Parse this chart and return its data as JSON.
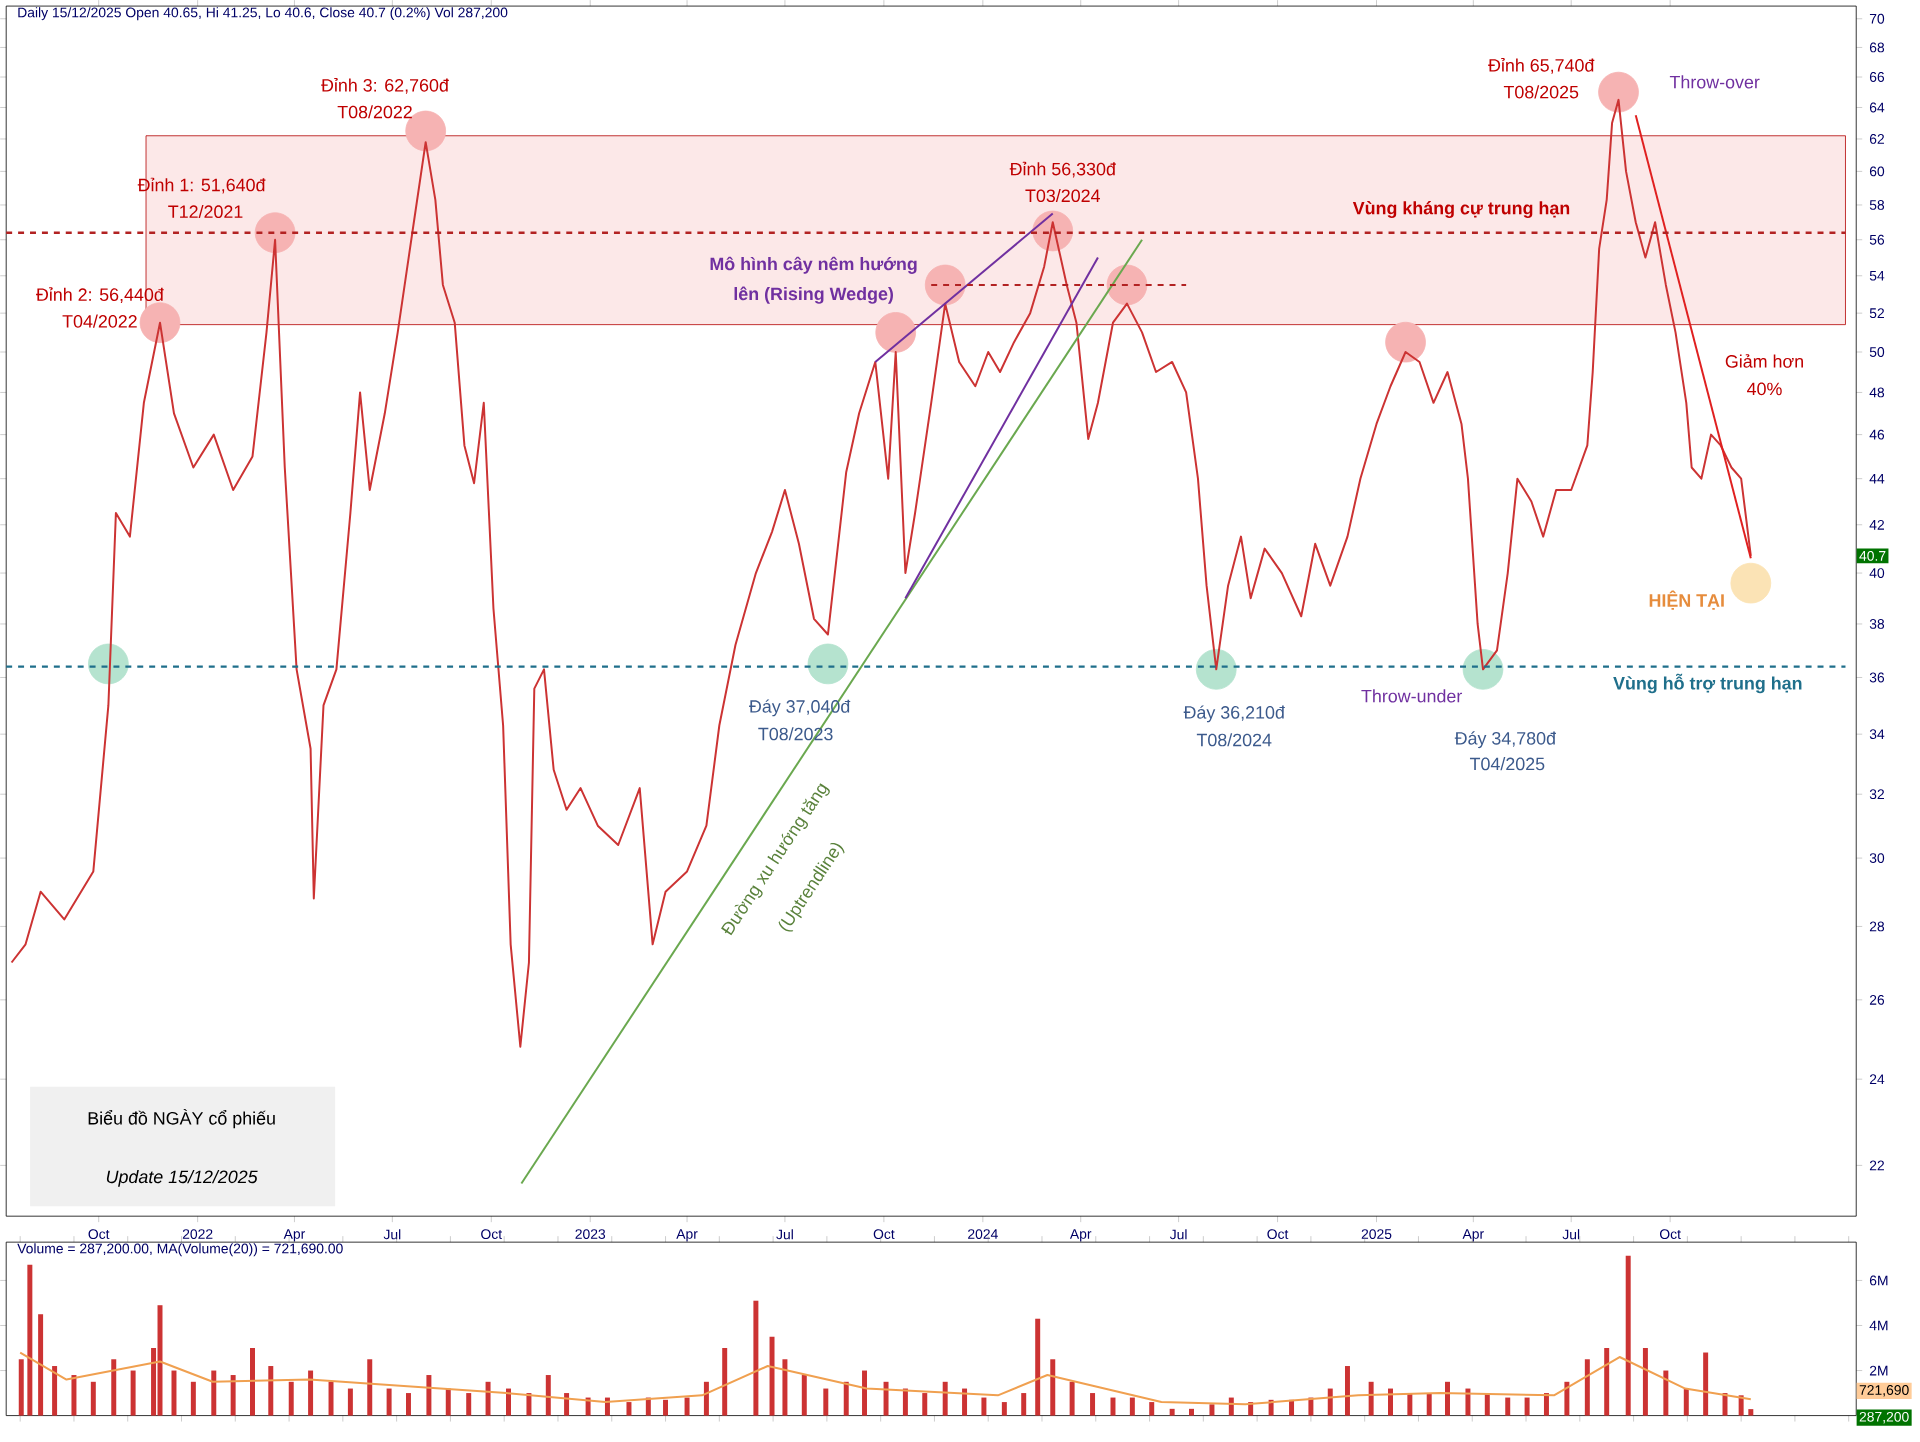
{
  "chart_data": [
    {
      "type": "line",
      "title": "Daily 15/12/2025 Open 40.65, Hi 41.25, Lo 40.6, Close 40.7 (0.2%) Vol 287,200",
      "log": "y",
      "xlim": [
        "2021-07-07",
        "2026-03-23"
      ],
      "ylim": [
        20.9,
        70.9
      ],
      "xticks": [
        {
          "value": "2021-10-01",
          "label": "Oct"
        },
        {
          "value": "2022-01-01",
          "label": "2022"
        },
        {
          "value": "2022-04-01",
          "label": "Apr"
        },
        {
          "value": "2022-07-01",
          "label": "Jul"
        },
        {
          "value": "2022-10-01",
          "label": "Oct"
        },
        {
          "value": "2023-01-01",
          "label": "2023"
        },
        {
          "value": "2023-04-01",
          "label": "Apr"
        },
        {
          "value": "2023-07-01",
          "label": "Jul"
        },
        {
          "value": "2023-10-01",
          "label": "Oct"
        },
        {
          "value": "2024-01-01",
          "label": "2024"
        },
        {
          "value": "2024-04-01",
          "label": "Apr"
        },
        {
          "value": "2024-07-01",
          "label": "Jul"
        },
        {
          "value": "2024-10-01",
          "label": "Oct"
        },
        {
          "value": "2025-01-01",
          "label": "2025"
        },
        {
          "value": "2025-04-01",
          "label": "Apr"
        },
        {
          "value": "2025-07-01",
          "label": "Jul"
        },
        {
          "value": "2025-10-01",
          "label": "Oct"
        }
      ],
      "yticks": [
        22,
        24,
        26,
        28,
        30,
        32,
        34,
        36,
        38,
        40,
        42,
        44,
        46,
        48,
        50,
        52,
        54,
        56,
        58,
        60,
        62,
        64,
        66,
        68,
        70
      ],
      "bands": [
        {
          "axis": "y",
          "from": 51.4,
          "to": 62.2,
          "label": "Vùng kháng cự trung hạn",
          "color": "#fce8e8"
        }
      ],
      "ref_lines": [
        {
          "axis": "y",
          "value": 56.4,
          "color": "#b22222",
          "line_style": "dashed"
        },
        {
          "axis": "y",
          "value": 36.4,
          "label": "Vùng hỗ trợ trung hạn",
          "color": "#1f6f8b",
          "line_style": "dashed"
        }
      ],
      "series": [
        {
          "type": "scatter",
          "marker": "circle",
          "color": "#f6b3b3",
          "x": [
            "2021-11-27",
            "2022-03-14",
            "2022-08-01",
            "2023-10-12",
            "2023-11-27",
            "2024-03-06",
            "2024-05-14",
            "2025-01-28",
            "2025-08-14"
          ],
          "values": [
            51.5,
            56.4,
            62.5,
            51,
            53.5,
            56.5,
            53.5,
            50.5,
            65
          ]
        },
        {
          "type": "scatter",
          "marker": "circle",
          "color": "#b5e3cf",
          "x": [
            "2021-10-10",
            "2023-08-10",
            "2024-08-05",
            "2025-04-10"
          ],
          "values": [
            36.5,
            36.5,
            36.3,
            36.3
          ]
        },
        {
          "type": "scatter",
          "marker": "circle",
          "color": "#fbe3b5",
          "x": [
            "2025-12-15"
          ],
          "values": [
            39.6
          ]
        },
        {
          "color": "#cc3333",
          "x": [
            "2021-07-12",
            "2021-07-25",
            "2021-08-08",
            "2021-08-30",
            "2021-09-26",
            "2021-10-10",
            "2021-10-17",
            "2021-10-30",
            "2021-11-12",
            "2021-11-27",
            "2021-12-10",
            "2021-12-28",
            "2022-01-16",
            "2022-02-03",
            "2022-02-21",
            "2022-03-06",
            "2022-03-14",
            "2022-03-23",
            "2022-04-03",
            "2022-04-16",
            "2022-04-19",
            "2022-04-28",
            "2022-05-10",
            "2022-05-23",
            "2022-06-01",
            "2022-06-10",
            "2022-06-24",
            "2022-07-06",
            "2022-07-21",
            "2022-08-01",
            "2022-08-10",
            "2022-08-17",
            "2022-08-28",
            "2022-09-06",
            "2022-09-15",
            "2022-09-24",
            "2022-10-03",
            "2022-10-12",
            "2022-10-19",
            "2022-10-28",
            "2022-11-05",
            "2022-11-10",
            "2022-11-19",
            "2022-11-28",
            "2022-12-10",
            "2022-12-23",
            "2023-01-08",
            "2023-01-27",
            "2023-02-16",
            "2023-02-28",
            "2023-03-12",
            "2023-04-01",
            "2023-04-19",
            "2023-05-01",
            "2023-05-16",
            "2023-06-04",
            "2023-06-19",
            "2023-07-01",
            "2023-07-14",
            "2023-07-28",
            "2023-08-10",
            "2023-08-27",
            "2023-09-08",
            "2023-09-23",
            "2023-10-05",
            "2023-10-12",
            "2023-10-21",
            "2023-10-30",
            "2023-11-14",
            "2023-11-27",
            "2023-12-10",
            "2023-12-25",
            "2024-01-06",
            "2024-01-17",
            "2024-01-30",
            "2024-02-14",
            "2024-02-27",
            "2024-03-06",
            "2024-03-19",
            "2024-03-28",
            "2024-04-08",
            "2024-04-17",
            "2024-05-01",
            "2024-05-14",
            "2024-05-28",
            "2024-06-10",
            "2024-06-25",
            "2024-07-08",
            "2024-07-19",
            "2024-07-27",
            "2024-08-05",
            "2024-08-16",
            "2024-08-28",
            "2024-09-06",
            "2024-09-19",
            "2024-10-05",
            "2024-10-23",
            "2024-11-05",
            "2024-11-19",
            "2024-12-05",
            "2024-12-17",
            "2025-01-01",
            "2025-01-14",
            "2025-01-28",
            "2025-02-10",
            "2025-02-23",
            "2025-03-08",
            "2025-03-21",
            "2025-03-27",
            "2025-04-05",
            "2025-04-10",
            "2025-04-23",
            "2025-05-03",
            "2025-05-12",
            "2025-05-25",
            "2025-06-05",
            "2025-06-17",
            "2025-07-01",
            "2025-07-16",
            "2025-07-21",
            "2025-07-27",
            "2025-08-03",
            "2025-08-08",
            "2025-08-14",
            "2025-08-21",
            "2025-08-30",
            "2025-09-08",
            "2025-09-17",
            "2025-09-27",
            "2025-10-06",
            "2025-10-16",
            "2025-10-21",
            "2025-10-30",
            "2025-11-08",
            "2025-11-17",
            "2025-11-27",
            "2025-12-06",
            "2025-12-15"
          ],
          "values": [
            27,
            27.5,
            29,
            28.2,
            29.6,
            35,
            42.5,
            41.5,
            47.5,
            51.5,
            47,
            44.5,
            46,
            43.5,
            45,
            51,
            56,
            44.5,
            36.3,
            33.5,
            28.8,
            35,
            36.3,
            42.5,
            48,
            43.5,
            47,
            51,
            57,
            61.8,
            58.3,
            53.5,
            51.5,
            45.5,
            43.8,
            47.5,
            38.6,
            34.3,
            27.5,
            24.8,
            27,
            35.6,
            36.3,
            32.8,
            31.5,
            32.2,
            31,
            30.4,
            32.2,
            27.5,
            29,
            29.6,
            31,
            34.3,
            37.2,
            40,
            41.7,
            43.5,
            41.2,
            38.2,
            37.6,
            44.3,
            47,
            49.5,
            44,
            50,
            40,
            42.5,
            47.5,
            52.5,
            49.5,
            48.3,
            50,
            49,
            50.5,
            52,
            54.5,
            57,
            53.5,
            51.5,
            45.8,
            47.5,
            51.5,
            52.5,
            51,
            49,
            49.5,
            48,
            44,
            39.5,
            36.3,
            39.5,
            41.5,
            39,
            41,
            40,
            38.3,
            41.2,
            39.5,
            41.5,
            44,
            46.5,
            48.3,
            50,
            49.5,
            47.5,
            49,
            46.5,
            44,
            38,
            36.3,
            37,
            40,
            44,
            43,
            41.5,
            43.5,
            43.5,
            45.5,
            49,
            55.5,
            58.3,
            63,
            64.5,
            60,
            57,
            55,
            57,
            53.5,
            51,
            47.5,
            44.5,
            44,
            46,
            45.5,
            44.5,
            44,
            40.7
          ]
        },
        {
          "color": "#6aa84f",
          "x": [
            "2022-10-29",
            "2024-05-28"
          ],
          "values": [
            21.6,
            56.0
          ]
        },
        {
          "color": "#7030a0",
          "x": [
            "2023-10-21",
            "2024-04-17"
          ],
          "values": [
            39.0,
            55.0
          ]
        },
        {
          "color": "#7030a0",
          "x": [
            "2023-09-23",
            "2024-03-06"
          ],
          "values": [
            49.5,
            57.5
          ]
        },
        {
          "color": "#b22222",
          "line_style": "dashed",
          "x": [
            "2023-11-14",
            "2024-07-08"
          ],
          "values": [
            53.5,
            53.5
          ]
        },
        {
          "color": "#e02020",
          "x": [
            "2025-08-30",
            "2025-12-15"
          ],
          "values": [
            63.5,
            40.6
          ]
        }
      ],
      "annotations": [
        "Đỉnh 2: 56,440đ",
        "T04/2022",
        "Đỉnh 1: 51,640đ",
        "T12/2021",
        "Đỉnh 3: 62,760đ",
        "T08/2022",
        "Mô hình cây nêm hướng",
        "lên (Rising Wedge)",
        "Đỉnh 56,330đ",
        "T03/2024",
        "Đỉnh 65,740đ",
        "T08/2025",
        "Throw-over",
        "Giảm hơn",
        "40%",
        "HIỆN TẠI",
        "Đáy 37,040đ",
        "T08/2023",
        "Đường xu hướng tăng",
        "(Uptrendline)",
        "Đáy 36,210đ",
        "T08/2024",
        "Throw-under",
        "Đáy 34,780đ",
        "T04/2025",
        "40.7",
        "Biểu đồ NGÀY  cổ phiếu",
        "Update 15/12/2025"
      ]
    },
    {
      "type": "bar",
      "title": "Volume = 287,200.00, MA(Volume(20)) = 721,690.00",
      "tick_labels": "y",
      "xlim": [
        "2021-07-07",
        "2026-03-23"
      ],
      "ylim": [
        0,
        7700000
      ],
      "yticks": [
        {
          "value": 2000000,
          "label": "2M"
        },
        {
          "value": 4000000,
          "label": "4M"
        },
        {
          "value": 6000000,
          "label": "6M"
        }
      ],
      "series": [
        {
          "color": "#cc3333",
          "x": [
            "2021-07-21",
            "2021-07-29",
            "2021-08-08",
            "2021-08-21",
            "2021-09-08",
            "2021-09-26",
            "2021-10-15",
            "2021-11-02",
            "2021-11-21",
            "2021-11-27",
            "2021-12-10",
            "2021-12-28",
            "2022-01-16",
            "2022-02-03",
            "2022-02-21",
            "2022-03-10",
            "2022-03-29",
            "2022-04-16",
            "2022-05-05",
            "2022-05-23",
            "2022-06-10",
            "2022-06-28",
            "2022-07-16",
            "2022-08-04",
            "2022-08-22",
            "2022-09-10",
            "2022-09-28",
            "2022-10-17",
            "2022-11-05",
            "2022-11-23",
            "2022-12-10",
            "2022-12-30",
            "2023-01-17",
            "2023-02-06",
            "2023-02-24",
            "2023-03-12",
            "2023-04-01",
            "2023-04-19",
            "2023-05-06",
            "2023-06-04",
            "2023-06-19",
            "2023-07-01",
            "2023-07-19",
            "2023-08-08",
            "2023-08-27",
            "2023-09-13",
            "2023-10-03",
            "2023-10-21",
            "2023-11-08",
            "2023-11-27",
            "2023-12-15",
            "2024-01-02",
            "2024-01-21",
            "2024-02-08",
            "2024-02-21",
            "2024-03-06",
            "2024-03-24",
            "2024-04-12",
            "2024-05-01",
            "2024-05-19",
            "2024-06-06",
            "2024-06-25",
            "2024-07-13",
            "2024-08-01",
            "2024-08-19",
            "2024-09-06",
            "2024-09-25",
            "2024-10-14",
            "2024-11-01",
            "2024-11-19",
            "2024-12-05",
            "2024-12-27",
            "2025-01-14",
            "2025-02-01",
            "2025-02-19",
            "2025-03-08",
            "2025-03-27",
            "2025-04-14",
            "2025-05-03",
            "2025-05-21",
            "2025-06-08",
            "2025-06-27",
            "2025-07-16",
            "2025-08-03",
            "2025-08-23",
            "2025-09-08",
            "2025-09-27",
            "2025-10-16",
            "2025-11-03",
            "2025-11-21",
            "2025-12-06",
            "2025-12-15"
          ],
          "values": [
            2500000,
            6700000,
            4500000,
            2200000,
            1800000,
            1500000,
            2500000,
            2000000,
            3000000,
            4900000,
            2000000,
            1500000,
            2000000,
            1800000,
            3000000,
            2200000,
            1500000,
            2000000,
            1500000,
            1200000,
            2500000,
            1200000,
            1000000,
            1800000,
            1200000,
            1000000,
            1500000,
            1200000,
            1000000,
            1800000,
            1000000,
            800000,
            800000,
            600000,
            800000,
            700000,
            800000,
            1500000,
            3000000,
            5100000,
            3500000,
            2500000,
            1800000,
            1200000,
            1500000,
            2000000,
            1500000,
            1200000,
            1000000,
            1500000,
            1200000,
            800000,
            600000,
            1000000,
            4300000,
            2500000,
            1500000,
            1000000,
            800000,
            800000,
            600000,
            300000,
            300000,
            500000,
            800000,
            600000,
            700000,
            700000,
            800000,
            1200000,
            2200000,
            1500000,
            1200000,
            1000000,
            1000000,
            1500000,
            1200000,
            1000000,
            800000,
            800000,
            1000000,
            1500000,
            2500000,
            3000000,
            7100000,
            3000000,
            2000000,
            1200000,
            2800000,
            1000000,
            900000,
            287200
          ]
        },
        {
          "type": "line",
          "color": "#f0a050",
          "x": [
            "2021-07-20",
            "2021-09-01",
            "2021-11-27",
            "2022-01-15",
            "2022-04-15",
            "2022-07-15",
            "2022-10-15",
            "2023-01-15",
            "2023-04-15",
            "2023-06-15",
            "2023-09-15",
            "2024-01-15",
            "2024-03-01",
            "2024-06-15",
            "2024-09-01",
            "2024-12-15",
            "2025-03-01",
            "2025-06-15",
            "2025-08-15",
            "2025-10-15",
            "2025-12-15"
          ],
          "values": [
            2800000,
            1600000,
            2400000,
            1500000,
            1600000,
            1300000,
            1000000,
            600000,
            900000,
            2200000,
            1200000,
            900000,
            1800000,
            600000,
            500000,
            900000,
            1000000,
            900000,
            2600000,
            1200000,
            721690
          ]
        }
      ],
      "annotations": [
        "721,690",
        "287,200"
      ]
    }
  ]
}
